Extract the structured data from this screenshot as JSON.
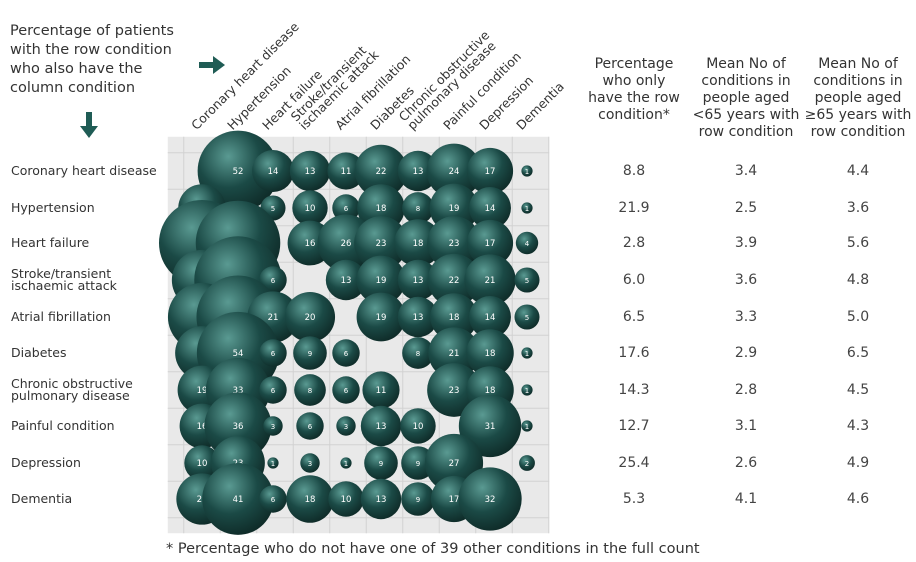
{
  "chart_data": {
    "type": "bubble-matrix",
    "description_lines": [
      "Percentage of patients",
      "with the row condition",
      "who also have the",
      "column condition"
    ],
    "columns": [
      "Coronary heart disease",
      "Hypertension",
      "Heart failure",
      "Stroke/transient ischaemic attack",
      "Atrial fibrillation",
      "Diabetes",
      "Chronic obstructive pulmonary disease",
      "Painful condition",
      "Depression",
      "Dementia"
    ],
    "column_label_lines": [
      [
        "Coronary heart disease"
      ],
      [
        "Hypertension"
      ],
      [
        "Heart failure"
      ],
      [
        "Stroke/transient",
        "ischaemic attack"
      ],
      [
        "Atrial fibrillation"
      ],
      [
        "Diabetes"
      ],
      [
        "Chronic obstructive",
        "pulmonary disease"
      ],
      [
        "Painful condition"
      ],
      [
        "Depression"
      ],
      [
        "Dementia"
      ]
    ],
    "rows": [
      {
        "label_lines": [
          "Coronary heart disease"
        ],
        "values": [
          null,
          52,
          14,
          13,
          11,
          22,
          13,
          24,
          17,
          1
        ],
        "only_row_condition": "8.8",
        "mean_under_65": "3.4",
        "mean_65_plus": "4.4"
      },
      {
        "label_lines": [
          "Hypertension"
        ],
        "values": [
          18,
          null,
          5,
          10,
          6,
          18,
          8,
          19,
          14,
          1
        ],
        "only_row_condition": "21.9",
        "mean_under_65": "2.5",
        "mean_65_plus": "3.6"
      },
      {
        "label_lines": [
          "Heart failure"
        ],
        "values": [
          59,
          57,
          null,
          16,
          26,
          23,
          18,
          23,
          17,
          4
        ],
        "only_row_condition": "2.8",
        "mean_under_65": "3.9",
        "mean_65_plus": "5.6"
      },
      {
        "label_lines": [
          "Stroke/transient",
          "ischaemic attack"
        ],
        "values": [
          29,
          61,
          6,
          null,
          13,
          19,
          13,
          22,
          21,
          5
        ],
        "only_row_condition": "6.0",
        "mean_under_65": "3.6",
        "mean_65_plus": "4.8"
      },
      {
        "label_lines": [
          "Atrial fibrillation"
        ],
        "values": [
          37,
          55,
          21,
          20,
          null,
          19,
          13,
          18,
          14,
          5
        ],
        "only_row_condition": "6.5",
        "mean_under_65": "3.3",
        "mean_65_plus": "5.0"
      },
      {
        "label_lines": [
          "Diabetes"
        ],
        "values": [
          23,
          54,
          6,
          9,
          6,
          null,
          8,
          21,
          18,
          1
        ],
        "only_row_condition": "17.6",
        "mean_under_65": "2.9",
        "mean_65_plus": "6.5"
      },
      {
        "label_lines": [
          "Chronic obstructive",
          "pulmonary disease"
        ],
        "values": [
          19,
          33,
          6,
          8,
          6,
          11,
          null,
          23,
          18,
          1
        ],
        "only_row_condition": "14.3",
        "mean_under_65": "2.8",
        "mean_65_plus": "4.5"
      },
      {
        "label_lines": [
          "Painful condition"
        ],
        "values": [
          16,
          36,
          3,
          6,
          3,
          13,
          10,
          null,
          31,
          1
        ],
        "only_row_condition": "12.7",
        "mean_under_65": "3.1",
        "mean_65_plus": "4.3"
      },
      {
        "label_lines": [
          "Depression"
        ],
        "values": [
          10,
          23,
          1,
          3,
          1,
          9,
          9,
          27,
          null,
          2
        ],
        "only_row_condition": "25.4",
        "mean_under_65": "2.6",
        "mean_65_plus": "4.9"
      },
      {
        "label_lines": [
          "Dementia"
        ],
        "values": [
          21,
          41,
          6,
          18,
          10,
          13,
          9,
          17,
          32,
          null
        ],
        "only_row_condition": "5.3",
        "mean_under_65": "4.1",
        "mean_65_plus": "4.6"
      }
    ],
    "stat_headers": [
      [
        "Percentage",
        "who only",
        "have the row",
        "condition*"
      ],
      [
        "Mean No of",
        "conditions in",
        "people aged",
        "<65 years with",
        "row condition"
      ],
      [
        "Mean No of",
        "conditions in",
        "people aged",
        "≥65 years with",
        "row condition"
      ]
    ],
    "footnote": "* Percentage who do not have one of 39 other conditions in the full count",
    "colors": {
      "bubble": "#1b4a46",
      "bubble_highlight": "#5a9a92",
      "panel": "#e9e9e9",
      "grid": "#d2d2d2",
      "arrow": "#1f5c55"
    }
  }
}
